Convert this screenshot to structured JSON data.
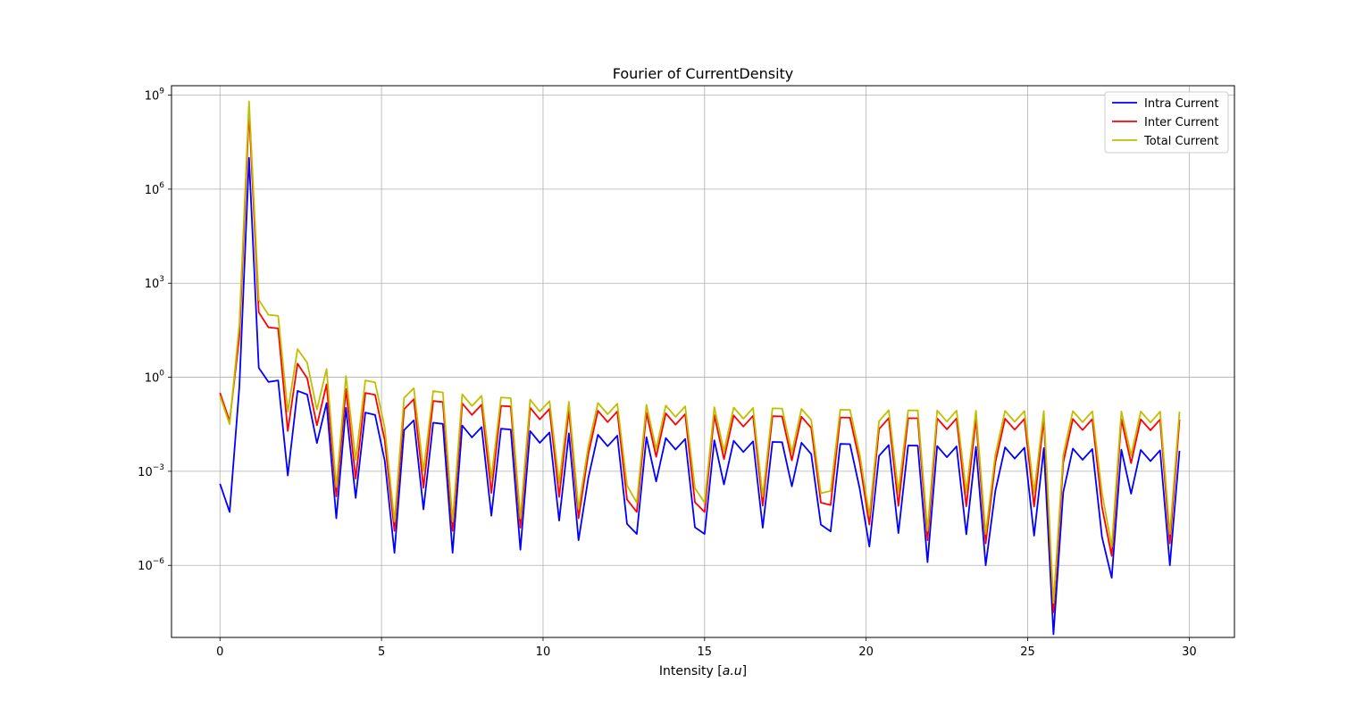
{
  "chart_data": {
    "type": "line",
    "title": "Fourier of CurrentDensity",
    "xlabel": "Intensity [a.u]",
    "xlabel_parts": {
      "prefix": "Intensity ",
      "open": "[",
      "math": "a.u",
      "close": "]"
    },
    "ylabel": "",
    "xlim": [
      -1.5,
      31.4
    ],
    "ylim_log10": [
      -8.3,
      9.3
    ],
    "yscale": "log",
    "grid": true,
    "legend_position": "top-right",
    "x_ticks": [
      0,
      5,
      10,
      15,
      20,
      25,
      30
    ],
    "x_tick_labels": [
      "0",
      "5",
      "10",
      "15",
      "20",
      "25",
      "30"
    ],
    "y_ticks_log10": [
      -6,
      -3,
      0,
      3,
      6,
      9
    ],
    "y_tick_labels": [
      {
        "base": "10",
        "exp": "−6"
      },
      {
        "base": "10",
        "exp": "−3"
      },
      {
        "base": "10",
        "exp": "0"
      },
      {
        "base": "10",
        "exp": "3"
      },
      {
        "base": "10",
        "exp": "6"
      },
      {
        "base": "10",
        "exp": "9"
      }
    ],
    "harmonic_spacing": 0.3,
    "series": [
      {
        "name": "Intra Current",
        "color": "#0000ff",
        "peak_log10": 7.0,
        "first_x": 0.0,
        "first_log10": -3.4,
        "end_log10": -2.3,
        "hump_log10": [
          [
            0.6,
            -0.3
          ],
          [
            1.3,
            0.4
          ],
          [
            2.0,
            -0.3
          ],
          [
            2.6,
            -0.5
          ],
          [
            3.2,
            -0.8
          ],
          [
            4.0,
            -1.0
          ],
          [
            5.0,
            -1.25
          ],
          [
            7.0,
            -1.5
          ],
          [
            10.0,
            -1.75
          ],
          [
            15.0,
            -2.0
          ],
          [
            20.0,
            -2.15
          ],
          [
            30.0,
            -2.35
          ]
        ],
        "dip_depth": [
          1.0,
          2.8
        ],
        "deep_dip_log10": -7.8
      },
      {
        "name": "Inter Current",
        "color": "#ff0000",
        "peak_log10": 8.5,
        "first_x": 0.0,
        "first_log10": -0.5,
        "end_log10": -1.3,
        "hump_log10": [
          [
            0.6,
            1.3
          ],
          [
            1.3,
            2.2
          ],
          [
            2.0,
            1.3
          ],
          [
            2.6,
            0.0
          ],
          [
            3.2,
            -0.2
          ],
          [
            4.0,
            -0.4
          ],
          [
            5.0,
            -0.6
          ],
          [
            7.0,
            -0.8
          ],
          [
            10.0,
            -1.0
          ],
          [
            15.0,
            -1.2
          ],
          [
            20.0,
            -1.3
          ],
          [
            30.0,
            -1.35
          ]
        ],
        "dip_depth": [
          1.0,
          2.8
        ],
        "deep_dip_log10": -7.5
      },
      {
        "name": "Total Current",
        "color": "#bfbf00",
        "peak_log10": 8.8,
        "first_x": 0.0,
        "first_log10": -0.6,
        "end_log10": -1.0,
        "hump_log10": [
          [
            0.6,
            1.7
          ],
          [
            1.3,
            2.6
          ],
          [
            2.0,
            1.7
          ],
          [
            2.6,
            0.5
          ],
          [
            3.2,
            0.3
          ],
          [
            4.0,
            0.0
          ],
          [
            5.0,
            -0.2
          ],
          [
            7.0,
            -0.5
          ],
          [
            10.0,
            -0.75
          ],
          [
            15.0,
            -0.95
          ],
          [
            20.0,
            -1.05
          ],
          [
            30.0,
            -1.1
          ]
        ],
        "dip_depth": [
          1.0,
          2.6
        ],
        "deep_dip_log10": -7.3
      }
    ],
    "dips": [
      {
        "x": 3.5,
        "log10": -4.1
      },
      {
        "x": 5.4,
        "log10": -5.2
      },
      {
        "x": 7.3,
        "log10": -5.2
      },
      {
        "x": 9.2,
        "log10": -5.1
      },
      {
        "x": 11.1,
        "log10": -4.8
      },
      {
        "x": 13.0,
        "log10": -4.6
      },
      {
        "x": 14.9,
        "log10": -4.6
      },
      {
        "x": 16.8,
        "log10": -4.4
      },
      {
        "x": 18.7,
        "log10": -4.3
      },
      {
        "x": 20.0,
        "log10": -5.0
      },
      {
        "x": 21.9,
        "log10": -5.5
      },
      {
        "x": 23.8,
        "log10": -5.6
      },
      {
        "x": 25.7,
        "log10": -7.8
      },
      {
        "x": 27.6,
        "log10": -6.0
      },
      {
        "x": 29.5,
        "log10": -5.6
      }
    ]
  }
}
